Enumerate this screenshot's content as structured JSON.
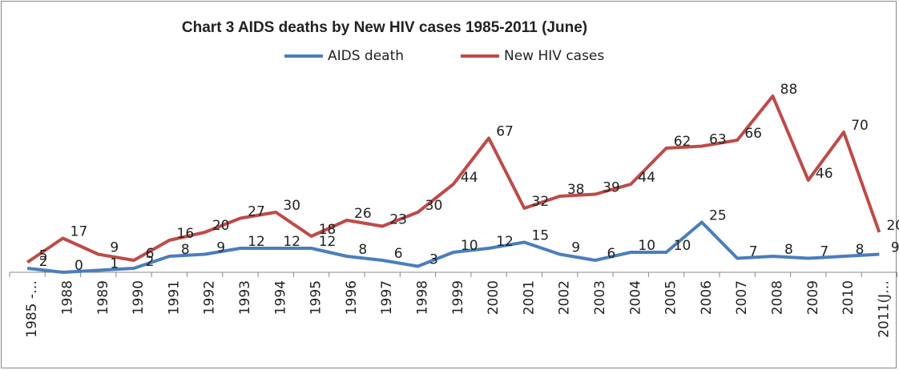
{
  "chart_data": {
    "type": "line",
    "title": "Chart 3    AIDS deaths by New HIV cases 1985-2011 (June)",
    "categories": [
      "1985 -…",
      "1988",
      "1989",
      "1990",
      "1991",
      "1992",
      "1993",
      "1994",
      "1995",
      "1996",
      "1997",
      "1998",
      "1999",
      "2000",
      "2001",
      "2002",
      "2003",
      "2004",
      "2005",
      "2006",
      "2007",
      "2008",
      "2009",
      "2010",
      "2011(J…"
    ],
    "series": [
      {
        "name": "AIDS death",
        "color": "#4a7ebb",
        "values": [
          2,
          0,
          1,
          2,
          8,
          9,
          12,
          12,
          12,
          8,
          6,
          3,
          10,
          12,
          15,
          9,
          6,
          10,
          10,
          25,
          7,
          8,
          7,
          8,
          9
        ]
      },
      {
        "name": "New HIV cases",
        "color": "#be4b48",
        "values": [
          5,
          17,
          9,
          6,
          16,
          20,
          27,
          30,
          18,
          26,
          23,
          30,
          44,
          67,
          32,
          38,
          39,
          44,
          62,
          63,
          66,
          88,
          46,
          70,
          20
        ]
      }
    ],
    "ylim": [
      0,
      100
    ],
    "legend": "top",
    "data_labels": true
  }
}
